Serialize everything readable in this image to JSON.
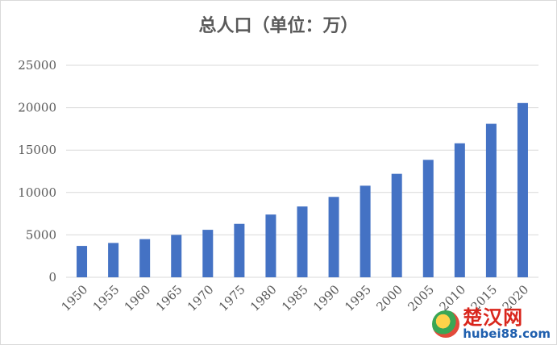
{
  "chart_data": {
    "type": "bar",
    "title": "总人口（单位：万）",
    "categories": [
      "1950",
      "1955",
      "1960",
      "1965",
      "1970",
      "1975",
      "1980",
      "1985",
      "1990",
      "1995",
      "2000",
      "2005",
      "2010",
      "2015",
      "2020"
    ],
    "values": [
      3700,
      4050,
      4500,
      5000,
      5600,
      6300,
      7400,
      8350,
      9480,
      10800,
      12200,
      13850,
      15800,
      18100,
      20550
    ],
    "ylim": [
      0,
      25000
    ],
    "yticks": [
      0,
      5000,
      10000,
      15000,
      20000,
      25000
    ],
    "grid": true,
    "bar_color": "#4472c4",
    "xlabel": "",
    "ylabel": ""
  },
  "watermark": {
    "main": "楚汉网",
    "sub": "hubei88.com",
    "icon": "globe-logo-icon"
  }
}
